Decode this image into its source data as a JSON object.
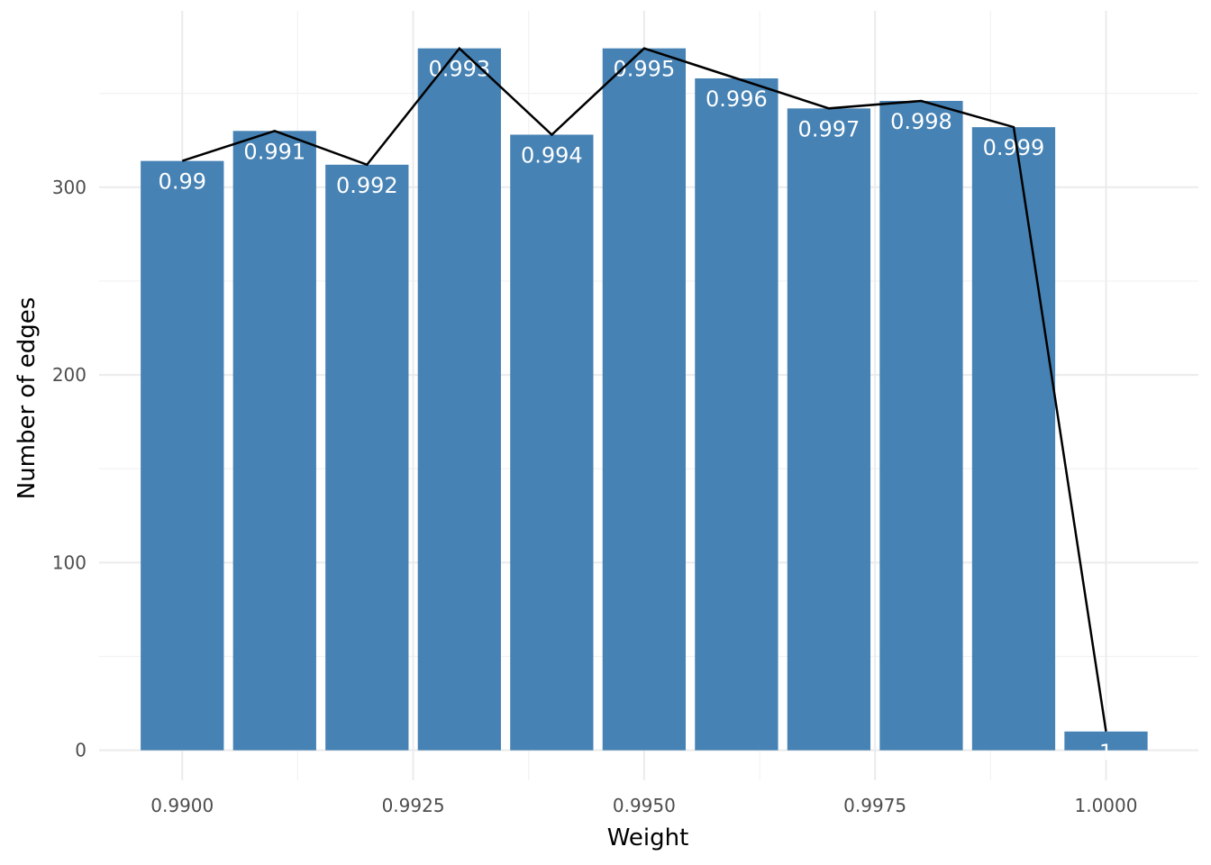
{
  "chart_data": {
    "type": "bar",
    "title": "",
    "xlabel": "Weight",
    "ylabel": "Number of edges",
    "x": [
      0.99,
      0.991,
      0.992,
      0.993,
      0.994,
      0.995,
      0.996,
      0.997,
      0.998,
      0.999,
      1.0
    ],
    "bar_labels": [
      "0.99",
      "0.991",
      "0.992",
      "0.993",
      "0.994",
      "0.995",
      "0.996",
      "0.997",
      "0.998",
      "0.999",
      "1"
    ],
    "values": [
      314,
      330,
      312,
      374,
      328,
      374,
      358,
      342,
      346,
      332,
      10
    ],
    "line_overlay": true,
    "bar_width": 0.0009,
    "xlim": [
      0.9891,
      1.001
    ],
    "ylim": [
      -16,
      394
    ],
    "x_ticks": [
      0.99,
      0.9925,
      0.995,
      0.9975,
      1.0
    ],
    "x_tick_labels": [
      "0.9900",
      "0.9925",
      "0.9950",
      "0.9975",
      "1.0000"
    ],
    "y_ticks": [
      0,
      100,
      200,
      300
    ],
    "y_tick_labels": [
      "0",
      "100",
      "200",
      "300"
    ],
    "grid": true,
    "legend": "none",
    "colors": {
      "bar": "#4682b4",
      "line": "#000000",
      "bar_label": "#ffffff"
    }
  }
}
